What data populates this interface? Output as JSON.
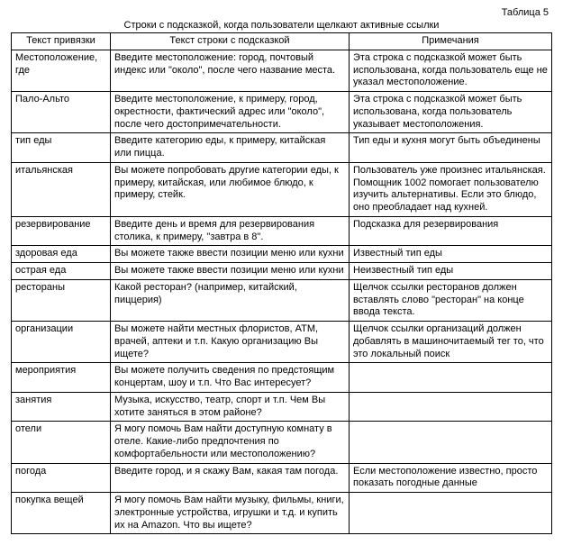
{
  "table_label": "Таблица 5",
  "caption": "Строки с подсказкой, когда пользователи щелкают активные ссылки",
  "columns": [
    {
      "key": "anchor",
      "header": "Текст привязки"
    },
    {
      "key": "prompt",
      "header": "Текст строки с подсказкой"
    },
    {
      "key": "notes",
      "header": "Примечания"
    }
  ],
  "rows": [
    {
      "anchor": "Местоположение, где",
      "prompt": "Введите местоположение: город, почтовый индекс или \"около\", после чего название места.",
      "notes": "Эта строка с подсказкой может быть использована, когда пользователь еще не указал местоположение."
    },
    {
      "anchor": "Пало-Альто",
      "prompt": "Введите местоположение, к примеру, город, окрестности, фактический адрес или \"около\", после чего достопримечательности.",
      "notes": "Эта строка с подсказкой может быть использована, когда пользователь указывает местоположения."
    },
    {
      "anchor": "тип еды",
      "prompt": "Введите категорию еды, к примеру, китайская или пицца.",
      "notes": "Тип еды и кухня могут быть объединены"
    },
    {
      "anchor": "итальянская",
      "prompt": "Вы можете попробовать другие категории еды, к примеру, китайская, или любимое блюдо, к примеру, стейк.",
      "notes": "Пользователь уже произнес итальянская. Помощник 1002 помогает пользователю изучить альтернативы. Если это блюдо, оно преобладает над кухней."
    },
    {
      "anchor": "резервирование",
      "prompt": "Введите день и время для резервирования столика, к примеру, \"завтра в 8\".",
      "notes": "Подсказка для резервирования"
    },
    {
      "anchor": "здоровая еда",
      "prompt": "Вы можете также ввести позиции меню или кухни",
      "notes": "Известный тип еды"
    },
    {
      "anchor": "острая еда",
      "prompt": "Вы можете также ввести позиции меню или кухни",
      "notes": "Неизвестный тип еды"
    },
    {
      "anchor": "рестораны",
      "prompt": "Какой ресторан? (например, китайский, пиццерия)",
      "notes": "Щелчок ссылки ресторанов должен вставлять слово \"ресторан\" на конце ввода текста."
    },
    {
      "anchor": "организации",
      "prompt": "Вы можете найти местных флористов, ATM, врачей, аптеки и т.п. Какую организацию Вы ищете?",
      "notes": "Щелчок ссылки организаций должен добавлять в машиночитаемый тег то, что это локальный поиск"
    },
    {
      "anchor": "мероприятия",
      "prompt": "Вы можете получить сведения по предстоящим концертам, шоу и т.п. Что Вас интересует?",
      "notes": ""
    },
    {
      "anchor": "занятия",
      "prompt": "Музыка, искусство, театр, спорт и т.п. Чем Вы хотите заняться в этом районе?",
      "notes": ""
    },
    {
      "anchor": "отели",
      "prompt": "Я могу помочь Вам найти доступную комнату в отеле. Какие-либо предпочтения по комфортабельности или местоположению?",
      "notes": ""
    },
    {
      "anchor": "погода",
      "prompt": "Введите город, и я скажу Вам, какая там погода.",
      "notes": "Если местоположение известно, просто показать погодные данные"
    },
    {
      "anchor": "покупка вещей",
      "prompt": "Я могу помочь Вам найти музыку, фильмы, книги, электронные устройства, игрушки и т.д. и купить их на Amazon. Что вы ищете?",
      "notes": ""
    }
  ]
}
